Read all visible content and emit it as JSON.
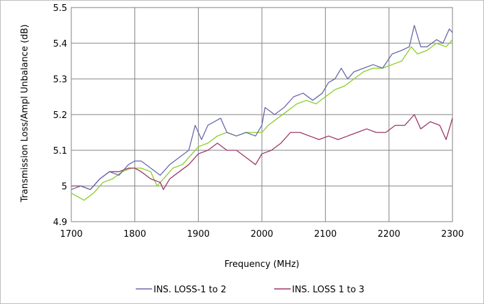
{
  "chart_data": {
    "type": "line",
    "xlabel": "Frequency (MHz)",
    "ylabel": "Transmission Loss/Ampl Unbalance (dB)",
    "xlim": [
      1700,
      2300
    ],
    "ylim": [
      4.9,
      5.5
    ],
    "x_ticks": [
      1700,
      1800,
      1900,
      2000,
      2100,
      2200,
      2300
    ],
    "y_ticks": [
      4.9,
      5,
      5.1,
      5.2,
      5.3,
      5.4,
      5.5
    ],
    "y_tick_labels": [
      "4.9",
      "5",
      "5.1",
      "5.2",
      "5.3",
      "5.4",
      "5.5"
    ],
    "grid": true,
    "legend_position": "bottom",
    "series": [
      {
        "name": "INS. LOSS-1 to 2",
        "color": "#6666aa",
        "points": [
          [
            1700,
            4.99
          ],
          [
            1715,
            5.0
          ],
          [
            1730,
            4.99
          ],
          [
            1745,
            5.02
          ],
          [
            1760,
            5.04
          ],
          [
            1775,
            5.03
          ],
          [
            1790,
            5.06
          ],
          [
            1800,
            5.07
          ],
          [
            1810,
            5.07
          ],
          [
            1825,
            5.05
          ],
          [
            1840,
            5.03
          ],
          [
            1855,
            5.06
          ],
          [
            1870,
            5.08
          ],
          [
            1885,
            5.1
          ],
          [
            1895,
            5.17
          ],
          [
            1905,
            5.13
          ],
          [
            1915,
            5.17
          ],
          [
            1925,
            5.18
          ],
          [
            1935,
            5.19
          ],
          [
            1945,
            5.15
          ],
          [
            1960,
            5.14
          ],
          [
            1975,
            5.15
          ],
          [
            1990,
            5.14
          ],
          [
            2000,
            5.17
          ],
          [
            2005,
            5.22
          ],
          [
            2020,
            5.2
          ],
          [
            2035,
            5.22
          ],
          [
            2050,
            5.25
          ],
          [
            2065,
            5.26
          ],
          [
            2080,
            5.24
          ],
          [
            2095,
            5.26
          ],
          [
            2105,
            5.29
          ],
          [
            2115,
            5.3
          ],
          [
            2125,
            5.33
          ],
          [
            2135,
            5.3
          ],
          [
            2145,
            5.32
          ],
          [
            2160,
            5.33
          ],
          [
            2175,
            5.34
          ],
          [
            2190,
            5.33
          ],
          [
            2205,
            5.37
          ],
          [
            2220,
            5.38
          ],
          [
            2232,
            5.39
          ],
          [
            2240,
            5.45
          ],
          [
            2250,
            5.39
          ],
          [
            2260,
            5.39
          ],
          [
            2275,
            5.41
          ],
          [
            2285,
            5.4
          ],
          [
            2295,
            5.44
          ],
          [
            2300,
            5.43
          ]
        ]
      },
      {
        "name": "INS. LOSS 1 to 3",
        "color": "#993366",
        "points": [
          [
            1700,
            5.0
          ],
          [
            1715,
            5.0
          ],
          [
            1730,
            4.99
          ],
          [
            1745,
            5.02
          ],
          [
            1760,
            5.04
          ],
          [
            1775,
            5.04
          ],
          [
            1790,
            5.05
          ],
          [
            1800,
            5.05
          ],
          [
            1810,
            5.04
          ],
          [
            1825,
            5.02
          ],
          [
            1840,
            5.01
          ],
          [
            1845,
            4.99
          ],
          [
            1855,
            5.02
          ],
          [
            1870,
            5.04
          ],
          [
            1885,
            5.06
          ],
          [
            1900,
            5.09
          ],
          [
            1915,
            5.1
          ],
          [
            1930,
            5.12
          ],
          [
            1945,
            5.1
          ],
          [
            1960,
            5.1
          ],
          [
            1975,
            5.08
          ],
          [
            1990,
            5.06
          ],
          [
            2000,
            5.09
          ],
          [
            2015,
            5.1
          ],
          [
            2030,
            5.12
          ],
          [
            2045,
            5.15
          ],
          [
            2060,
            5.15
          ],
          [
            2075,
            5.14
          ],
          [
            2090,
            5.13
          ],
          [
            2105,
            5.14
          ],
          [
            2120,
            5.13
          ],
          [
            2135,
            5.14
          ],
          [
            2150,
            5.15
          ],
          [
            2165,
            5.16
          ],
          [
            2180,
            5.15
          ],
          [
            2195,
            5.15
          ],
          [
            2210,
            5.17
          ],
          [
            2225,
            5.17
          ],
          [
            2240,
            5.2
          ],
          [
            2250,
            5.16
          ],
          [
            2265,
            5.18
          ],
          [
            2280,
            5.17
          ],
          [
            2290,
            5.13
          ],
          [
            2300,
            5.19
          ]
        ]
      },
      {
        "color": "#88cc22",
        "points": [
          [
            1700,
            4.98
          ],
          [
            1710,
            4.97
          ],
          [
            1720,
            4.96
          ],
          [
            1735,
            4.98
          ],
          [
            1750,
            5.01
          ],
          [
            1765,
            5.02
          ],
          [
            1780,
            5.04
          ],
          [
            1795,
            5.05
          ],
          [
            1810,
            5.05
          ],
          [
            1825,
            5.04
          ],
          [
            1835,
            5.0
          ],
          [
            1845,
            5.02
          ],
          [
            1860,
            5.05
          ],
          [
            1875,
            5.06
          ],
          [
            1890,
            5.09
          ],
          [
            1900,
            5.11
          ],
          [
            1915,
            5.12
          ],
          [
            1930,
            5.14
          ],
          [
            1945,
            5.15
          ],
          [
            1960,
            5.14
          ],
          [
            1975,
            5.15
          ],
          [
            1990,
            5.15
          ],
          [
            2000,
            5.15
          ],
          [
            2010,
            5.17
          ],
          [
            2025,
            5.19
          ],
          [
            2040,
            5.21
          ],
          [
            2055,
            5.23
          ],
          [
            2070,
            5.24
          ],
          [
            2085,
            5.23
          ],
          [
            2100,
            5.25
          ],
          [
            2115,
            5.27
          ],
          [
            2130,
            5.28
          ],
          [
            2145,
            5.3
          ],
          [
            2160,
            5.32
          ],
          [
            2175,
            5.33
          ],
          [
            2190,
            5.33
          ],
          [
            2205,
            5.34
          ],
          [
            2220,
            5.35
          ],
          [
            2235,
            5.39
          ],
          [
            2245,
            5.37
          ],
          [
            2260,
            5.38
          ],
          [
            2275,
            5.4
          ],
          [
            2290,
            5.39
          ],
          [
            2300,
            5.41
          ]
        ]
      }
    ]
  }
}
